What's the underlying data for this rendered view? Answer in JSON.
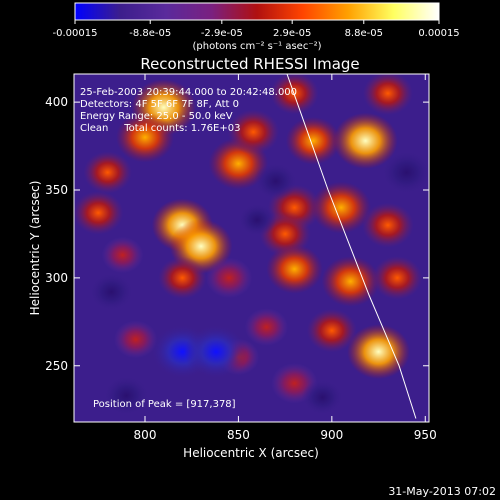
{
  "chart_data": {
    "type": "heatmap",
    "title": "Reconstructed RHESSI Image",
    "xlabel": "Heliocentric X (arcsec)",
    "ylabel": "Heliocentric Y (arcsec)",
    "xlim": [
      762,
      952
    ],
    "ylim": [
      218,
      416
    ],
    "xticks": [
      800,
      850,
      900,
      950
    ],
    "yticks": [
      250,
      300,
      350,
      400
    ],
    "colorbar": {
      "range": [
        -0.00015,
        0.00015
      ],
      "tick_labels": [
        "-0.00015",
        "-8.8e-05",
        "-2.9e-05",
        "2.9e-05",
        "8.8e-05",
        "0.00015"
      ],
      "tick_values": [
        -0.00015,
        -8.8e-05,
        -2.9e-05,
        2.9e-05,
        8.8e-05,
        0.00015
      ],
      "unit_label": "(photons cm⁻² s⁻¹ asec⁻²)",
      "colormap": [
        "#0000ff",
        "#3c1e8c",
        "#5a2a9c",
        "#7a2080",
        "#b01010",
        "#ff4400",
        "#ffa000",
        "#ffff60",
        "#ffffff"
      ]
    },
    "annotations": [
      "25-Feb-2003 20:39:44.000 to 20:42:48.000",
      "Detectors: 4F 5F 6F 7F 8F, Att 0",
      "Energy Range: 25.0 - 50.0 keV",
      "Clean     Total counts: 1.76E+03"
    ],
    "peak_label": "Position of Peak = [917,378]",
    "limb_curve_x_at_y": [
      [
        876,
        416
      ],
      [
        898,
        350
      ],
      [
        920,
        290
      ],
      [
        936,
        250
      ],
      [
        945,
        220
      ]
    ],
    "blobs": [
      {
        "x": 810,
        "y": 397,
        "v": 1.0
      },
      {
        "x": 800,
        "y": 380,
        "v": 0.8
      },
      {
        "x": 780,
        "y": 360,
        "v": 0.5
      },
      {
        "x": 775,
        "y": 337,
        "v": 0.55
      },
      {
        "x": 820,
        "y": 330,
        "v": 0.9
      },
      {
        "x": 830,
        "y": 318,
        "v": 0.95
      },
      {
        "x": 820,
        "y": 300,
        "v": 0.5
      },
      {
        "x": 788,
        "y": 313,
        "v": 0.3
      },
      {
        "x": 850,
        "y": 365,
        "v": 0.85
      },
      {
        "x": 858,
        "y": 383,
        "v": 0.6
      },
      {
        "x": 845,
        "y": 300,
        "v": 0.45
      },
      {
        "x": 880,
        "y": 405,
        "v": 0.5
      },
      {
        "x": 890,
        "y": 378,
        "v": 0.7
      },
      {
        "x": 880,
        "y": 340,
        "v": 0.65
      },
      {
        "x": 875,
        "y": 325,
        "v": 0.6
      },
      {
        "x": 918,
        "y": 378,
        "v": 1.0
      },
      {
        "x": 905,
        "y": 340,
        "v": 0.85
      },
      {
        "x": 930,
        "y": 330,
        "v": 0.6
      },
      {
        "x": 880,
        "y": 305,
        "v": 0.75
      },
      {
        "x": 910,
        "y": 298,
        "v": 0.8
      },
      {
        "x": 925,
        "y": 258,
        "v": 0.95
      },
      {
        "x": 900,
        "y": 270,
        "v": 0.55
      },
      {
        "x": 880,
        "y": 240,
        "v": 0.45
      },
      {
        "x": 795,
        "y": 265,
        "v": 0.35
      },
      {
        "x": 850,
        "y": 255,
        "v": 0.3
      },
      {
        "x": 930,
        "y": 405,
        "v": 0.55
      },
      {
        "x": 935,
        "y": 300,
        "v": 0.55
      },
      {
        "x": 865,
        "y": 272,
        "v": 0.35
      },
      {
        "x": 820,
        "y": 258,
        "v": -0.95
      },
      {
        "x": 838,
        "y": 258,
        "v": -0.95
      },
      {
        "x": 782,
        "y": 292,
        "v": -0.4
      },
      {
        "x": 790,
        "y": 233,
        "v": -0.45
      },
      {
        "x": 870,
        "y": 355,
        "v": -0.35
      },
      {
        "x": 940,
        "y": 360,
        "v": -0.6
      },
      {
        "x": 895,
        "y": 232,
        "v": -0.3
      },
      {
        "x": 860,
        "y": 333,
        "v": -0.2
      }
    ]
  },
  "footer": {
    "timestamp": "31-May-2013 07:02"
  }
}
